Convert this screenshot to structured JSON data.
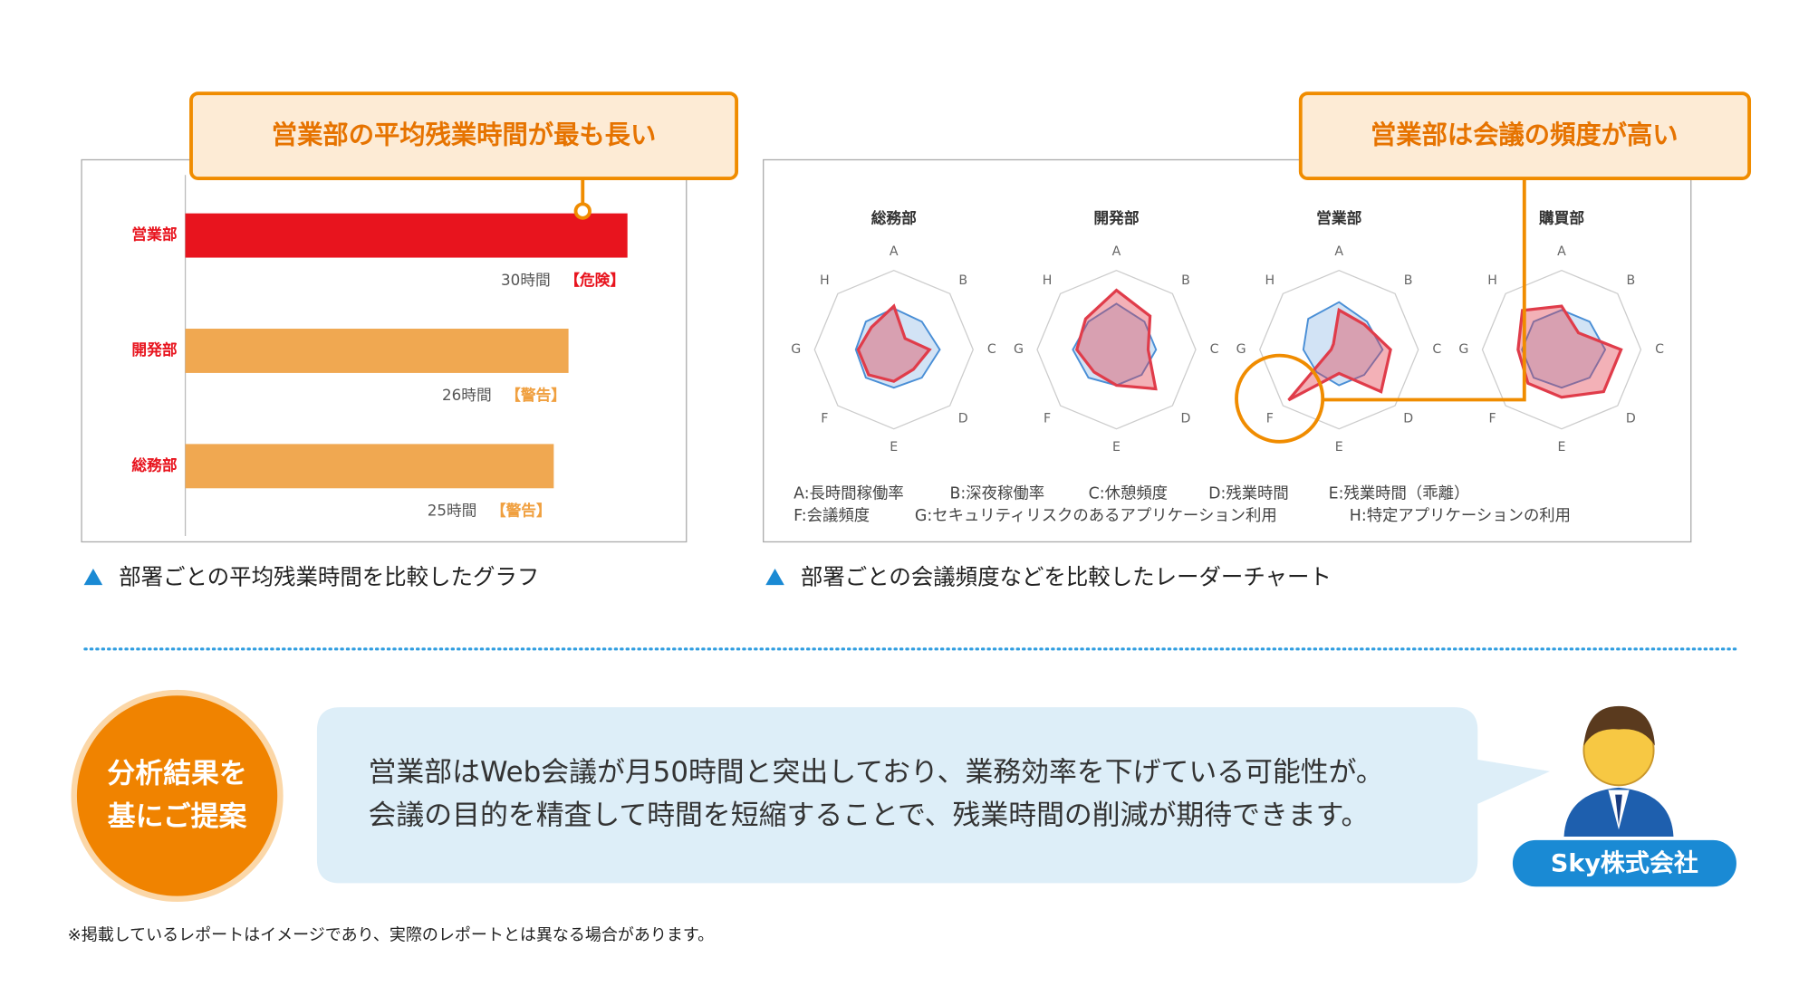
{
  "chart_data": [
    {
      "type": "bar",
      "orientation": "horizontal",
      "categories": [
        "営業部",
        "開発部",
        "総務部"
      ],
      "values": [
        30,
        26,
        25
      ],
      "value_labels": [
        "30時間",
        "26時間",
        "25時間"
      ],
      "status_labels": [
        "【危険】",
        "【警告】",
        "【警告】"
      ],
      "colors": [
        "#e8141e",
        "#f0a851",
        "#f0a851"
      ],
      "status_colors": [
        "#e8141e",
        "#f0a040",
        "#f0a040"
      ],
      "xlim": [
        0,
        34
      ]
    },
    {
      "type": "radar",
      "title": "総務部",
      "axes": [
        "A",
        "B",
        "C",
        "D",
        "E",
        "F",
        "G",
        "H"
      ],
      "rlim": [
        0,
        100
      ],
      "series": [
        {
          "color": "#4a8fd6",
          "values": [
            52,
            50,
            58,
            50,
            48,
            50,
            48,
            50
          ]
        },
        {
          "color": "#e03c4a",
          "values": [
            55,
            20,
            45,
            35,
            40,
            45,
            45,
            40
          ]
        }
      ]
    },
    {
      "type": "radar",
      "title": "開発部",
      "axes": [
        "A",
        "B",
        "C",
        "D",
        "E",
        "F",
        "G",
        "H"
      ],
      "rlim": [
        0,
        100
      ],
      "series": [
        {
          "color": "#4a8fd6",
          "values": [
            58,
            50,
            50,
            45,
            45,
            50,
            55,
            50
          ]
        },
        {
          "color": "#e03c4a",
          "values": [
            75,
            60,
            40,
            70,
            45,
            40,
            50,
            55
          ]
        }
      ]
    },
    {
      "type": "radar",
      "title": "営業部",
      "axes": [
        "A",
        "B",
        "C",
        "D",
        "E",
        "F",
        "G",
        "H"
      ],
      "rlim": [
        0,
        100
      ],
      "series": [
        {
          "color": "#4a8fd6",
          "values": [
            60,
            50,
            55,
            45,
            45,
            40,
            45,
            55
          ]
        },
        {
          "color": "#e03c4a",
          "values": [
            50,
            45,
            65,
            75,
            30,
            90,
            10,
            10
          ]
        }
      ]
    },
    {
      "type": "radar",
      "title": "購買部",
      "axes": [
        "A",
        "B",
        "C",
        "D",
        "E",
        "F",
        "G",
        "H"
      ],
      "rlim": [
        0,
        100
      ],
      "series": [
        {
          "color": "#4a8fd6",
          "values": [
            50,
            50,
            55,
            50,
            48,
            50,
            50,
            50
          ]
        },
        {
          "color": "#e03c4a",
          "values": [
            55,
            30,
            75,
            75,
            60,
            60,
            55,
            70
          ]
        }
      ]
    }
  ],
  "radar_legend": [
    "A:長時間稼働率",
    "B:深夜稼働率",
    "C:休憩頻度",
    "D:残業時間",
    "E:残業時間（乖離）",
    "F:会議頻度",
    "G:セキュリティリスクのあるアプリケーション利用",
    "H:特定アプリケーションの利用"
  ],
  "callouts": [
    "営業部の平均残業時間が最も長い",
    "営業部は会議の頻度が高い"
  ],
  "captions": [
    "部署ごとの平均残業時間を比較したグラフ",
    "部署ごとの会議頻度などを比較したレーダーチャート"
  ],
  "proposal": {
    "badge_lines": [
      "分析結果を",
      "基にご提案"
    ],
    "message_lines": [
      "営業部はWeb会議が月50時間と突出しており、業務効率を下げている可能性が。",
      "会議の目的を精査して時間を短縮することで、残業時間の削減が期待できます。"
    ],
    "company": "Sky株式会社"
  },
  "footnote": "※掲載しているレポートはイメージであり、実際のレポートとは異なる場合があります。"
}
